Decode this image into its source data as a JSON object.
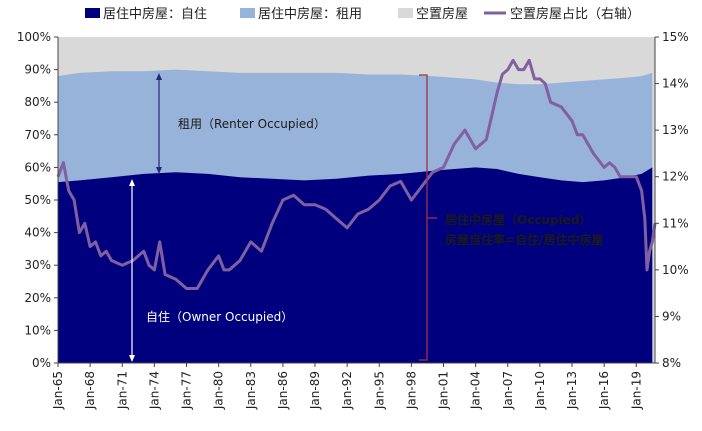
{
  "chart_data": {
    "type": "area",
    "x_ticks": [
      "Jan-65",
      "Jan-68",
      "Jan-71",
      "Jan-74",
      "Jan-77",
      "Jan-80",
      "Jan-83",
      "Jan-86",
      "Jan-89",
      "Jan-92",
      "Jan-95",
      "Jan-98",
      "Jan-01",
      "Jan-04",
      "Jan-07",
      "Jan-10",
      "Jan-13",
      "Jan-16",
      "Jan-19"
    ],
    "y_left_ticks": [
      "0%",
      "10%",
      "20%",
      "30%",
      "40%",
      "50%",
      "60%",
      "70%",
      "80%",
      "90%",
      "100%"
    ],
    "y_right_ticks": [
      "8%",
      "9%",
      "10%",
      "11%",
      "12%",
      "13%",
      "14%",
      "15%"
    ],
    "ylim_left": [
      0,
      100
    ],
    "ylim_right": [
      8,
      15
    ],
    "xlim": [
      1965.0,
      2020.75
    ],
    "legend": [
      {
        "key": "owner",
        "label": "居住中房屋：自住",
        "color": "#00007f",
        "kind": "box"
      },
      {
        "key": "renter",
        "label": "居住中房屋：租用",
        "color": "#98b3d9",
        "kind": "box"
      },
      {
        "key": "vacant",
        "label": "空置房屋",
        "color": "#d9d9d9",
        "kind": "box"
      },
      {
        "key": "vacancy_share",
        "label": "空置房屋占比（右轴）",
        "color": "#8060a0",
        "kind": "line"
      }
    ],
    "annotations": {
      "renter": "租用（Renter Occupied）",
      "owner": "自住（Owner Occupied）",
      "occupied_1": "居住中房屋（Occupied）",
      "occupied_2": "房屋自住率=自住/居住中房屋"
    },
    "series": [
      {
        "name": "居住中房屋：自住",
        "axis": "left",
        "x": [
          1965,
          1967,
          1970,
          1973,
          1976,
          1979,
          1982,
          1985,
          1988,
          1991,
          1994,
          1997,
          2000,
          2002,
          2004,
          2006,
          2008,
          2010,
          2012,
          2014,
          2016,
          2018,
          2019.5,
          2020.5
        ],
        "values": [
          55.5,
          56,
          57,
          58,
          58.5,
          58,
          57,
          56.5,
          56,
          56.5,
          57.5,
          58,
          59,
          59.5,
          60,
          59.5,
          58,
          57,
          56,
          55.5,
          56,
          57,
          58,
          60
        ]
      },
      {
        "name": "居住中房屋：自住+租用",
        "axis": "left",
        "x": [
          1965,
          1967,
          1970,
          1973,
          1976,
          1979,
          1982,
          1985,
          1988,
          1991,
          1994,
          1997,
          2000,
          2002,
          2004,
          2006,
          2008,
          2010,
          2012,
          2014,
          2016,
          2018,
          2019.5,
          2020.5
        ],
        "values": [
          88,
          89,
          89.5,
          89.5,
          90,
          89.5,
          89,
          89,
          89,
          89,
          88.5,
          88.5,
          88,
          87.5,
          87,
          86,
          85.5,
          85.5,
          86,
          86.5,
          87,
          87.5,
          88,
          89
        ]
      },
      {
        "name": "空置房屋占比（右轴）",
        "axis": "right",
        "x": [
          1965,
          1965.5,
          1966,
          1966.5,
          1967,
          1967.5,
          1968,
          1968.5,
          1969,
          1969.5,
          1970,
          1971,
          1972,
          1973,
          1973.5,
          1974,
          1974.5,
          1975,
          1976,
          1977,
          1978,
          1979,
          1980,
          1980.5,
          1981,
          1982,
          1983,
          1984,
          1985,
          1986,
          1987,
          1988,
          1989,
          1990,
          1991,
          1992,
          1993,
          1994,
          1995,
          1996,
          1997,
          1998,
          1999,
          2000,
          2001,
          2002,
          2003,
          2004,
          2005,
          2006,
          2006.5,
          2007,
          2007.5,
          2008,
          2008.5,
          2009,
          2009.5,
          2010,
          2010.5,
          2011,
          2012,
          2013,
          2013.5,
          2014,
          2015,
          2016,
          2016.5,
          2017,
          2017.5,
          2018,
          2019,
          2019.5,
          2019.8,
          2020,
          2020.25,
          2020.5,
          2020.75
        ],
        "values": [
          12,
          12.3,
          11.7,
          11.5,
          10.8,
          11,
          10.5,
          10.6,
          10.3,
          10.4,
          10.2,
          10.1,
          10.2,
          10.4,
          10.1,
          10,
          10.6,
          9.9,
          9.8,
          9.6,
          9.6,
          10,
          10.3,
          10,
          10,
          10.2,
          10.6,
          10.4,
          11,
          11.5,
          11.6,
          11.4,
          11.4,
          11.3,
          11.1,
          10.9,
          11.2,
          11.3,
          11.5,
          11.8,
          11.9,
          11.5,
          11.8,
          12.1,
          12.2,
          12.7,
          13,
          12.6,
          12.8,
          13.8,
          14.2,
          14.3,
          14.5,
          14.3,
          14.3,
          14.5,
          14.1,
          14.1,
          14,
          13.6,
          13.5,
          13.2,
          12.9,
          12.9,
          12.5,
          12.2,
          12.3,
          12.2,
          12,
          12,
          12,
          11.7,
          11.1,
          10,
          10.4,
          10.6,
          11
        ]
      }
    ]
  }
}
